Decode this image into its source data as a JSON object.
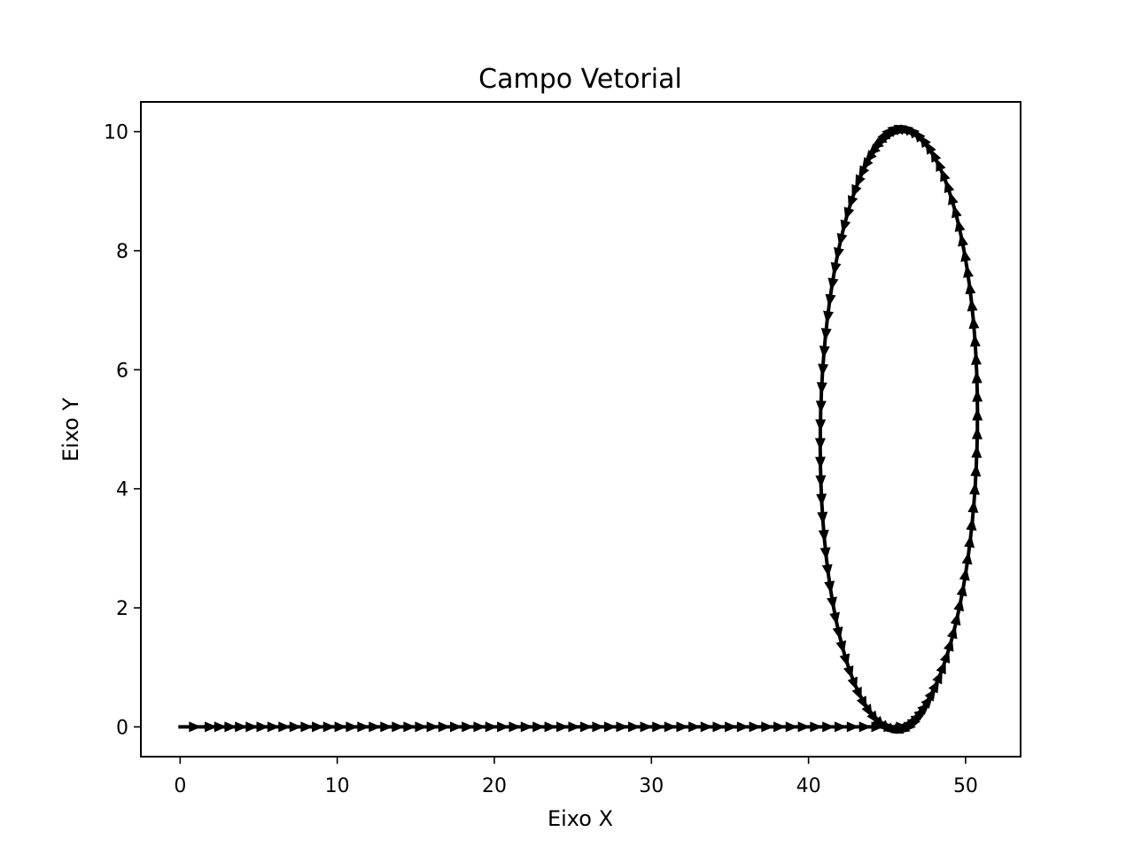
{
  "chart_data": {
    "type": "quiver",
    "title": "Campo Vetorial",
    "xlabel": "Eixo X",
    "ylabel": "Eixo Y",
    "xlim": [
      -2.5,
      53.5
    ],
    "ylim": [
      -0.5,
      10.5
    ],
    "xticks": [
      0,
      10,
      20,
      30,
      40,
      50
    ],
    "yticks": [
      0,
      2,
      4,
      6,
      8,
      10
    ],
    "grid": false,
    "legend": "none",
    "arrow_color": "#000000",
    "segments": [
      {
        "shape": "line",
        "from": [
          1,
          0
        ],
        "to": [
          45,
          0
        ],
        "count": 60
      },
      {
        "shape": "ellipse",
        "center": [
          46.0,
          5.0
        ],
        "radius_x": 5.0,
        "radius_y": 5.0,
        "count": 100,
        "x_offset_at_bottom": 1.0
      }
    ]
  }
}
